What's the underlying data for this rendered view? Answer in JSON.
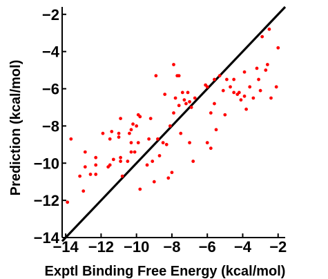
{
  "chart_data": {
    "type": "scatter",
    "title": "",
    "xlabel": "Exptl Binding Free Energy (kcal/mol)",
    "ylabel": "Prediction (kcal/mol)",
    "xlim": [
      -14.2,
      -1.6
    ],
    "ylim": [
      -14,
      -1.6
    ],
    "xticks": [
      -14,
      -12,
      -10,
      -8,
      -6,
      -4,
      -2
    ],
    "yticks": [
      -14,
      -12,
      -10,
      -8,
      -6,
      -4,
      -2
    ],
    "xtick_labels": [
      "−14",
      "−12",
      "−10",
      "−8",
      "−6",
      "−4",
      "−2"
    ],
    "ytick_labels": [
      "−14",
      "−12",
      "−10",
      "−8",
      "−6",
      "−4",
      "−2"
    ],
    "grid": false,
    "reference_line": {
      "x": [
        -14.2,
        -1.6
      ],
      "y": [
        -14.2,
        -1.6
      ]
    },
    "point_color": "#ff0000",
    "series": [
      {
        "points": [
          [
            -13.9,
            -12.1
          ],
          [
            -13.7,
            -8.7
          ],
          [
            -13.2,
            -10.7
          ],
          [
            -13.0,
            -11.5
          ],
          [
            -12.9,
            -10.2
          ],
          [
            -12.9,
            -9.4
          ],
          [
            -12.6,
            -10.6
          ],
          [
            -12.3,
            -10.6
          ],
          [
            -12.3,
            -10.1
          ],
          [
            -12.3,
            -9.7
          ],
          [
            -11.9,
            -8.4
          ],
          [
            -11.6,
            -10.2
          ],
          [
            -11.5,
            -10.1
          ],
          [
            -11.5,
            -8.7
          ],
          [
            -11.4,
            -8.3
          ],
          [
            -11.3,
            -9.8
          ],
          [
            -11.0,
            -8.6
          ],
          [
            -11.0,
            -8.4
          ],
          [
            -10.9,
            -9.9
          ],
          [
            -10.9,
            -9.7
          ],
          [
            -10.9,
            -7.6
          ],
          [
            -10.8,
            -10.7
          ],
          [
            -10.5,
            -9.9
          ],
          [
            -10.4,
            -8.4
          ],
          [
            -10.3,
            -9.4
          ],
          [
            -10.3,
            -8.9
          ],
          [
            -10.3,
            -8.2
          ],
          [
            -10.2,
            -7.9
          ],
          [
            -10.1,
            -9.4
          ],
          [
            -10.0,
            -8.0
          ],
          [
            -9.9,
            -8.9
          ],
          [
            -9.9,
            -7.4
          ],
          [
            -9.8,
            -11.4
          ],
          [
            -9.8,
            -7.5
          ],
          [
            -9.4,
            -10.1
          ],
          [
            -9.3,
            -8.7
          ],
          [
            -9.2,
            -7.6
          ],
          [
            -9.1,
            -9.9
          ],
          [
            -9.0,
            -11.0
          ],
          [
            -8.9,
            -5.3
          ],
          [
            -8.8,
            -8.7
          ],
          [
            -8.7,
            -9.6
          ],
          [
            -8.5,
            -8.9
          ],
          [
            -8.4,
            -6.3
          ],
          [
            -8.3,
            -9.0
          ],
          [
            -8.2,
            -10.8
          ],
          [
            -8.1,
            -8.0
          ],
          [
            -8.0,
            -10.5
          ],
          [
            -7.9,
            -4.7
          ],
          [
            -7.9,
            -7.3
          ],
          [
            -7.8,
            -6.5
          ],
          [
            -7.7,
            -5.3
          ],
          [
            -7.6,
            -5.3
          ],
          [
            -7.6,
            -6.9
          ],
          [
            -7.5,
            -8.4
          ],
          [
            -7.4,
            -6.2
          ],
          [
            -7.3,
            -6.6
          ],
          [
            -7.2,
            -6.8
          ],
          [
            -7.1,
            -6.2
          ],
          [
            -7.0,
            -6.7
          ],
          [
            -7.0,
            -8.9
          ],
          [
            -6.9,
            -7.0
          ],
          [
            -6.8,
            -9.9
          ],
          [
            -6.7,
            -6.5
          ],
          [
            -6.1,
            -5.8
          ],
          [
            -6.0,
            -8.9
          ],
          [
            -6.0,
            -5.9
          ],
          [
            -5.8,
            -9.2
          ],
          [
            -5.8,
            -7.3
          ],
          [
            -5.6,
            -6.8
          ],
          [
            -5.6,
            -5.5
          ],
          [
            -5.5,
            -8.2
          ],
          [
            -5.3,
            -5.3
          ],
          [
            -5.1,
            -6.1
          ],
          [
            -5.0,
            -7.4
          ],
          [
            -4.9,
            -5.5
          ],
          [
            -4.7,
            -5.9
          ],
          [
            -4.5,
            -5.5
          ],
          [
            -4.5,
            -6.2
          ],
          [
            -4.3,
            -6.3
          ],
          [
            -4.2,
            -6.2
          ],
          [
            -4.1,
            -6.6
          ],
          [
            -3.9,
            -6.4
          ],
          [
            -3.9,
            -5.1
          ],
          [
            -3.8,
            -7.1
          ],
          [
            -3.6,
            -5.9
          ],
          [
            -3.4,
            -6.5
          ],
          [
            -3.2,
            -4.9
          ],
          [
            -3.1,
            -5.5
          ],
          [
            -3.0,
            -6.1
          ],
          [
            -2.9,
            -3.2
          ],
          [
            -2.7,
            -5.0
          ],
          [
            -2.6,
            -4.7
          ],
          [
            -2.5,
            -2.8
          ],
          [
            -2.4,
            -6.5
          ],
          [
            -2.1,
            -5.9
          ],
          [
            -2.0,
            -3.8
          ]
        ]
      }
    ]
  }
}
